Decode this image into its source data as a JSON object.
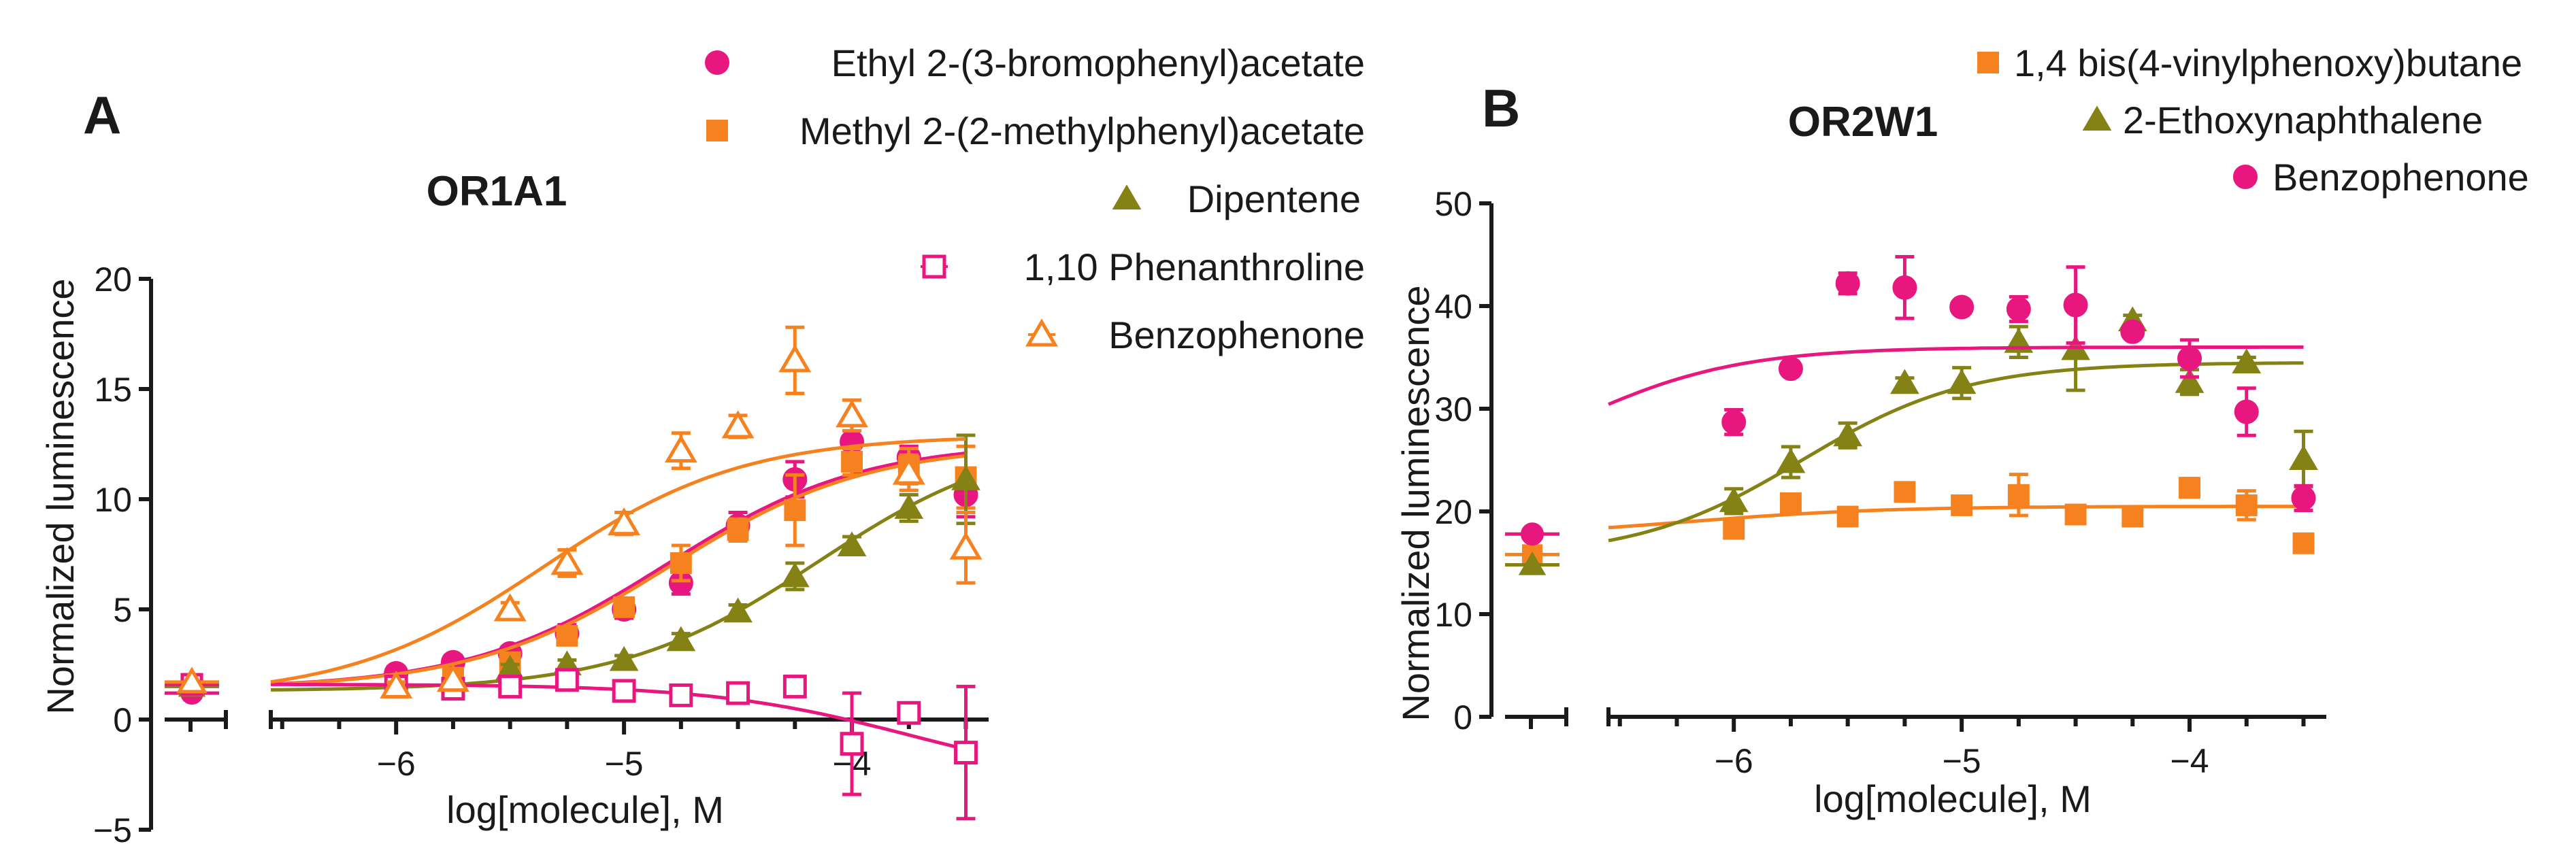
{
  "chart_data": [
    {
      "type": "scatter",
      "panel_letter": "A",
      "title": "OR1A1",
      "xlabel": "log[molecule], M",
      "ylabel": "Normalized luminescence",
      "xlim": [
        -6.55,
        -3.4
      ],
      "ylim": [
        -5,
        20
      ],
      "xticks": [
        -6,
        -5,
        -4
      ],
      "xtick_labels": [
        "−6",
        "−5",
        "−4"
      ],
      "yticks": [
        -5,
        0,
        5,
        10,
        15,
        20
      ],
      "ytick_labels": [
        "−5",
        "0",
        "5",
        "10",
        "15",
        "20"
      ],
      "legend_position": "top-right",
      "series": [
        {
          "name": "Ethyl 2-(3-bromophenyl)acetate",
          "color": "#e8177f",
          "marker": "circle",
          "filled": true,
          "baseline": 1.2,
          "baseline_err": 0.3,
          "x": [
            -6.0,
            -5.75,
            -5.5,
            -5.25,
            -5.0,
            -4.75,
            -4.5,
            -4.25,
            -4.0,
            -3.75,
            -3.5
          ],
          "y": [
            2.1,
            2.6,
            3.0,
            3.9,
            5.0,
            6.2,
            8.8,
            10.9,
            12.6,
            11.9,
            10.2
          ],
          "err": [
            0.3,
            0.3,
            0.3,
            0.4,
            0.4,
            0.5,
            0.6,
            0.8,
            0.5,
            0.5,
            1.0
          ],
          "fit": {
            "bottom": 1.4,
            "top": 12.6,
            "logec50": -4.82,
            "hill": 1.0
          }
        },
        {
          "name": "Methyl 2-(2-methylphenyl)acetate",
          "color": "#f5821f",
          "marker": "square",
          "filled": true,
          "baseline": 1.6,
          "baseline_err": 0.3,
          "x": [
            -6.0,
            -5.75,
            -5.5,
            -5.25,
            -5.0,
            -4.75,
            -4.5,
            -4.25,
            -4.0,
            -3.75,
            -3.5
          ],
          "y": [
            1.6,
            1.9,
            2.6,
            3.8,
            5.1,
            7.1,
            8.6,
            9.5,
            11.7,
            11.5,
            11.0
          ],
          "err": [
            0.3,
            0.3,
            0.3,
            0.4,
            0.4,
            0.8,
            0.5,
            1.6,
            0.6,
            0.8,
            1.4
          ],
          "fit": {
            "bottom": 1.4,
            "top": 12.5,
            "logec50": -4.8,
            "hill": 1.0
          }
        },
        {
          "name": "Dipentene",
          "color": "#858215",
          "marker": "triangle",
          "filled": true,
          "baseline": 1.5,
          "baseline_err": 0.3,
          "x": [
            -5.5,
            -5.25,
            -5.0,
            -4.75,
            -4.5,
            -4.25,
            -4.0,
            -3.75,
            -3.5
          ],
          "y": [
            2.3,
            2.5,
            2.7,
            3.6,
            4.9,
            6.5,
            7.9,
            9.6,
            10.9
          ],
          "err": [
            0.2,
            0.2,
            0.2,
            0.3,
            0.3,
            0.6,
            0.4,
            0.6,
            2.0
          ],
          "fit": {
            "bottom": 1.3,
            "top": 13.0,
            "logec50": -4.15,
            "hill": 1.0
          }
        },
        {
          "name": "1,10 Phenanthroline",
          "color": "#e8177f",
          "marker": "square",
          "filled": false,
          "baseline": 1.6,
          "baseline_err": 0.3,
          "x": [
            -6.0,
            -5.75,
            -5.5,
            -5.25,
            -5.0,
            -4.75,
            -4.5,
            -4.25,
            -4.0,
            -3.75,
            -3.5
          ],
          "y": [
            1.5,
            1.4,
            1.5,
            1.8,
            1.3,
            1.1,
            1.2,
            1.5,
            -1.1,
            0.3,
            -1.5
          ],
          "err": [
            0.2,
            0.2,
            0.2,
            0.3,
            0.3,
            0.2,
            0.2,
            0.3,
            2.3,
            0.3,
            3.0
          ],
          "fit": {
            "bottom": 1.6,
            "top": -3.0,
            "logec50": -3.75,
            "hill": 1.0
          }
        },
        {
          "name": "Benzophenone",
          "color": "#f5821f",
          "marker": "triangle",
          "filled": false,
          "baseline": 1.7,
          "baseline_err": 0.3,
          "x": [
            -6.0,
            -5.75,
            -5.5,
            -5.25,
            -5.0,
            -4.75,
            -4.5,
            -4.25,
            -4.0,
            -3.75,
            -3.5
          ],
          "y": [
            1.5,
            1.8,
            5.0,
            7.1,
            8.9,
            12.2,
            13.3,
            16.3,
            13.8,
            11.2,
            7.8
          ],
          "err": [
            0.2,
            0.2,
            0.3,
            0.6,
            0.5,
            0.8,
            0.5,
            1.5,
            0.7,
            0.8,
            1.6
          ],
          "fit": {
            "bottom": 1.0,
            "top": 12.9,
            "logec50": -5.35,
            "hill": 1.0
          }
        }
      ]
    },
    {
      "type": "scatter",
      "panel_letter": "B",
      "title": "OR2W1",
      "xlabel": "log[molecule], M",
      "ylabel": "Normalized luminescence",
      "xlim": [
        -6.55,
        -3.4
      ],
      "ylim": [
        0,
        50
      ],
      "xticks": [
        -6,
        -5,
        -4
      ],
      "xtick_labels": [
        "−6",
        "−5",
        "−4"
      ],
      "yticks": [
        0,
        10,
        20,
        30,
        40,
        50
      ],
      "ytick_labels": [
        "0",
        "10",
        "20",
        "30",
        "40",
        "50"
      ],
      "legend_position": "top-right",
      "series": [
        {
          "name": "1,4 bis(4-vinylphenoxy)butane",
          "color": "#f5821f",
          "marker": "square",
          "filled": true,
          "baseline": 15.8,
          "baseline_err": 0.7,
          "x": [
            -6.0,
            -5.75,
            -5.5,
            -5.25,
            -5.0,
            -4.75,
            -4.5,
            -4.25,
            -4.0,
            -3.75,
            -3.5
          ],
          "y": [
            18.3,
            20.8,
            19.5,
            21.9,
            20.6,
            21.6,
            19.7,
            19.5,
            22.3,
            20.6,
            16.9
          ],
          "err": [
            0.6,
            0.5,
            0.4,
            0.4,
            0.5,
            2.0,
            0.5,
            0.4,
            0.9,
            1.4,
            0.8
          ],
          "fit": {
            "bottom": 17.5,
            "top": 20.5,
            "logec50": -6.2,
            "hill": 1.0
          }
        },
        {
          "name": "2-Ethoxynaphthalene",
          "color": "#858215",
          "marker": "triangle",
          "filled": true,
          "baseline": 14.8,
          "baseline_err": 0.7,
          "x": [
            -6.0,
            -5.75,
            -5.5,
            -5.25,
            -5.0,
            -4.75,
            -4.5,
            -4.25,
            -4.0,
            -3.75,
            -3.5
          ],
          "y": [
            21.0,
            24.8,
            27.4,
            32.5,
            32.5,
            36.5,
            35.8,
            38.6,
            32.6,
            34.5,
            25.1
          ],
          "err": [
            1.2,
            1.5,
            1.2,
            0.5,
            1.5,
            1.5,
            4.0,
            0.5,
            1.2,
            0.5,
            2.7
          ],
          "fit": {
            "bottom": 15.5,
            "top": 34.5,
            "logec50": -5.7,
            "hill": 1.2
          }
        },
        {
          "name": "Benzophenone",
          "color": "#e8177f",
          "marker": "circle",
          "filled": true,
          "baseline": 17.8,
          "baseline_err": 0.4,
          "x": [
            -6.0,
            -5.75,
            -5.5,
            -5.25,
            -5.0,
            -4.75,
            -4.5,
            -4.25,
            -4.0,
            -3.75,
            -3.5
          ],
          "y": [
            28.7,
            33.9,
            42.2,
            41.8,
            39.9,
            39.7,
            40.1,
            37.5,
            34.9,
            29.7,
            21.3
          ],
          "err": [
            1.2,
            0.5,
            1.0,
            3.0,
            0.5,
            1.2,
            3.7,
            0.5,
            1.8,
            2.3,
            1.2
          ],
          "fit": {
            "bottom": 22.0,
            "top": 36.0,
            "logec50": -6.7,
            "hill": 1.2
          }
        }
      ]
    }
  ]
}
